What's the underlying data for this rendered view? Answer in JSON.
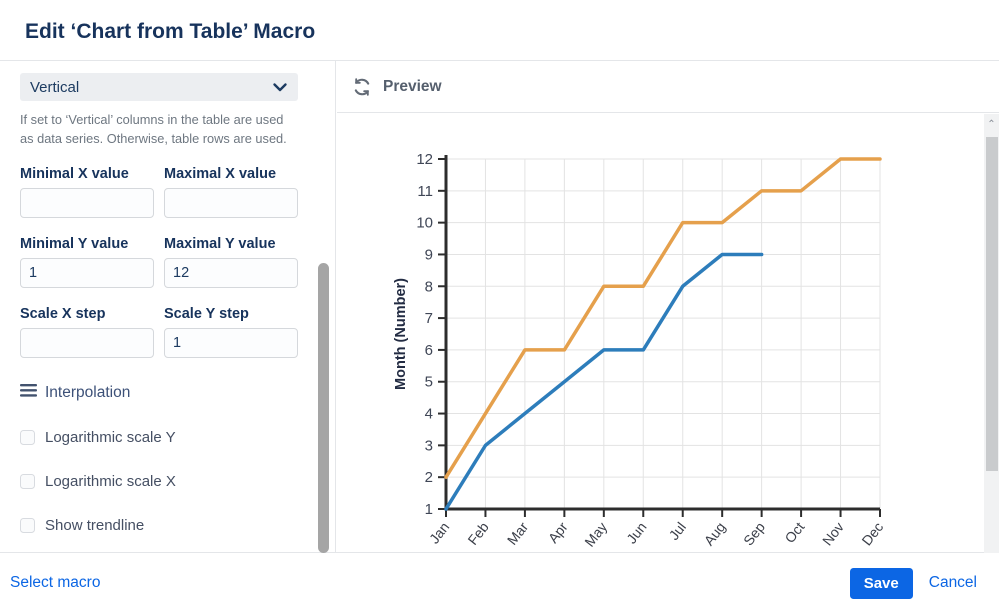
{
  "dialog": {
    "title": "Edit ‘Chart from Table’ Macro"
  },
  "panel": {
    "orientation": {
      "value": "Vertical"
    },
    "help_text": "If set to ‘Vertical’ columns in the table are used as data series. Otherwise, table rows are used.",
    "fields": [
      {
        "label": "Minimal X value",
        "value": ""
      },
      {
        "label": "Maximal X value",
        "value": ""
      },
      {
        "label": "Minimal Y value",
        "value": "1"
      },
      {
        "label": "Maximal Y value",
        "value": "12"
      },
      {
        "label": "Scale X step",
        "value": ""
      },
      {
        "label": "Scale Y step",
        "value": "1"
      }
    ],
    "interpolation_label": "Interpolation",
    "checkboxes": [
      {
        "label": "Logarithmic scale Y",
        "checked": false
      },
      {
        "label": "Logarithmic scale X",
        "checked": false
      },
      {
        "label": "Show trendline",
        "checked": false
      }
    ]
  },
  "preview": {
    "label": "Preview"
  },
  "footer": {
    "select_macro": "Select macro",
    "save": "Save",
    "cancel": "Cancel"
  },
  "colors": {
    "accent": "#0c66e4",
    "title": "#17335c",
    "series_orange": "#e5a04c",
    "series_blue": "#2d7dbb",
    "grid": "#e3e3e3",
    "axis": "#2d2d2d"
  },
  "chart_data": {
    "type": "line",
    "categories": [
      "Jan",
      "Feb",
      "Mar",
      "Apr",
      "May",
      "Jun",
      "Jul",
      "Aug",
      "Sep",
      "Oct",
      "Nov",
      "Dec"
    ],
    "series": [
      {
        "name": "orange-series",
        "color": "#e5a04c",
        "values": [
          2,
          4,
          6,
          6,
          8,
          8,
          10,
          10,
          11,
          11,
          12,
          12
        ]
      },
      {
        "name": "blue-series",
        "color": "#2d7dbb",
        "values": [
          1,
          3,
          4,
          5,
          6,
          6,
          8,
          9,
          9,
          null,
          null,
          null
        ]
      }
    ],
    "title": "",
    "xlabel": "",
    "ylabel": "Month (Number)",
    "ylim": [
      1,
      12
    ],
    "ytick_step": 1,
    "grid": true,
    "legend": "none"
  }
}
